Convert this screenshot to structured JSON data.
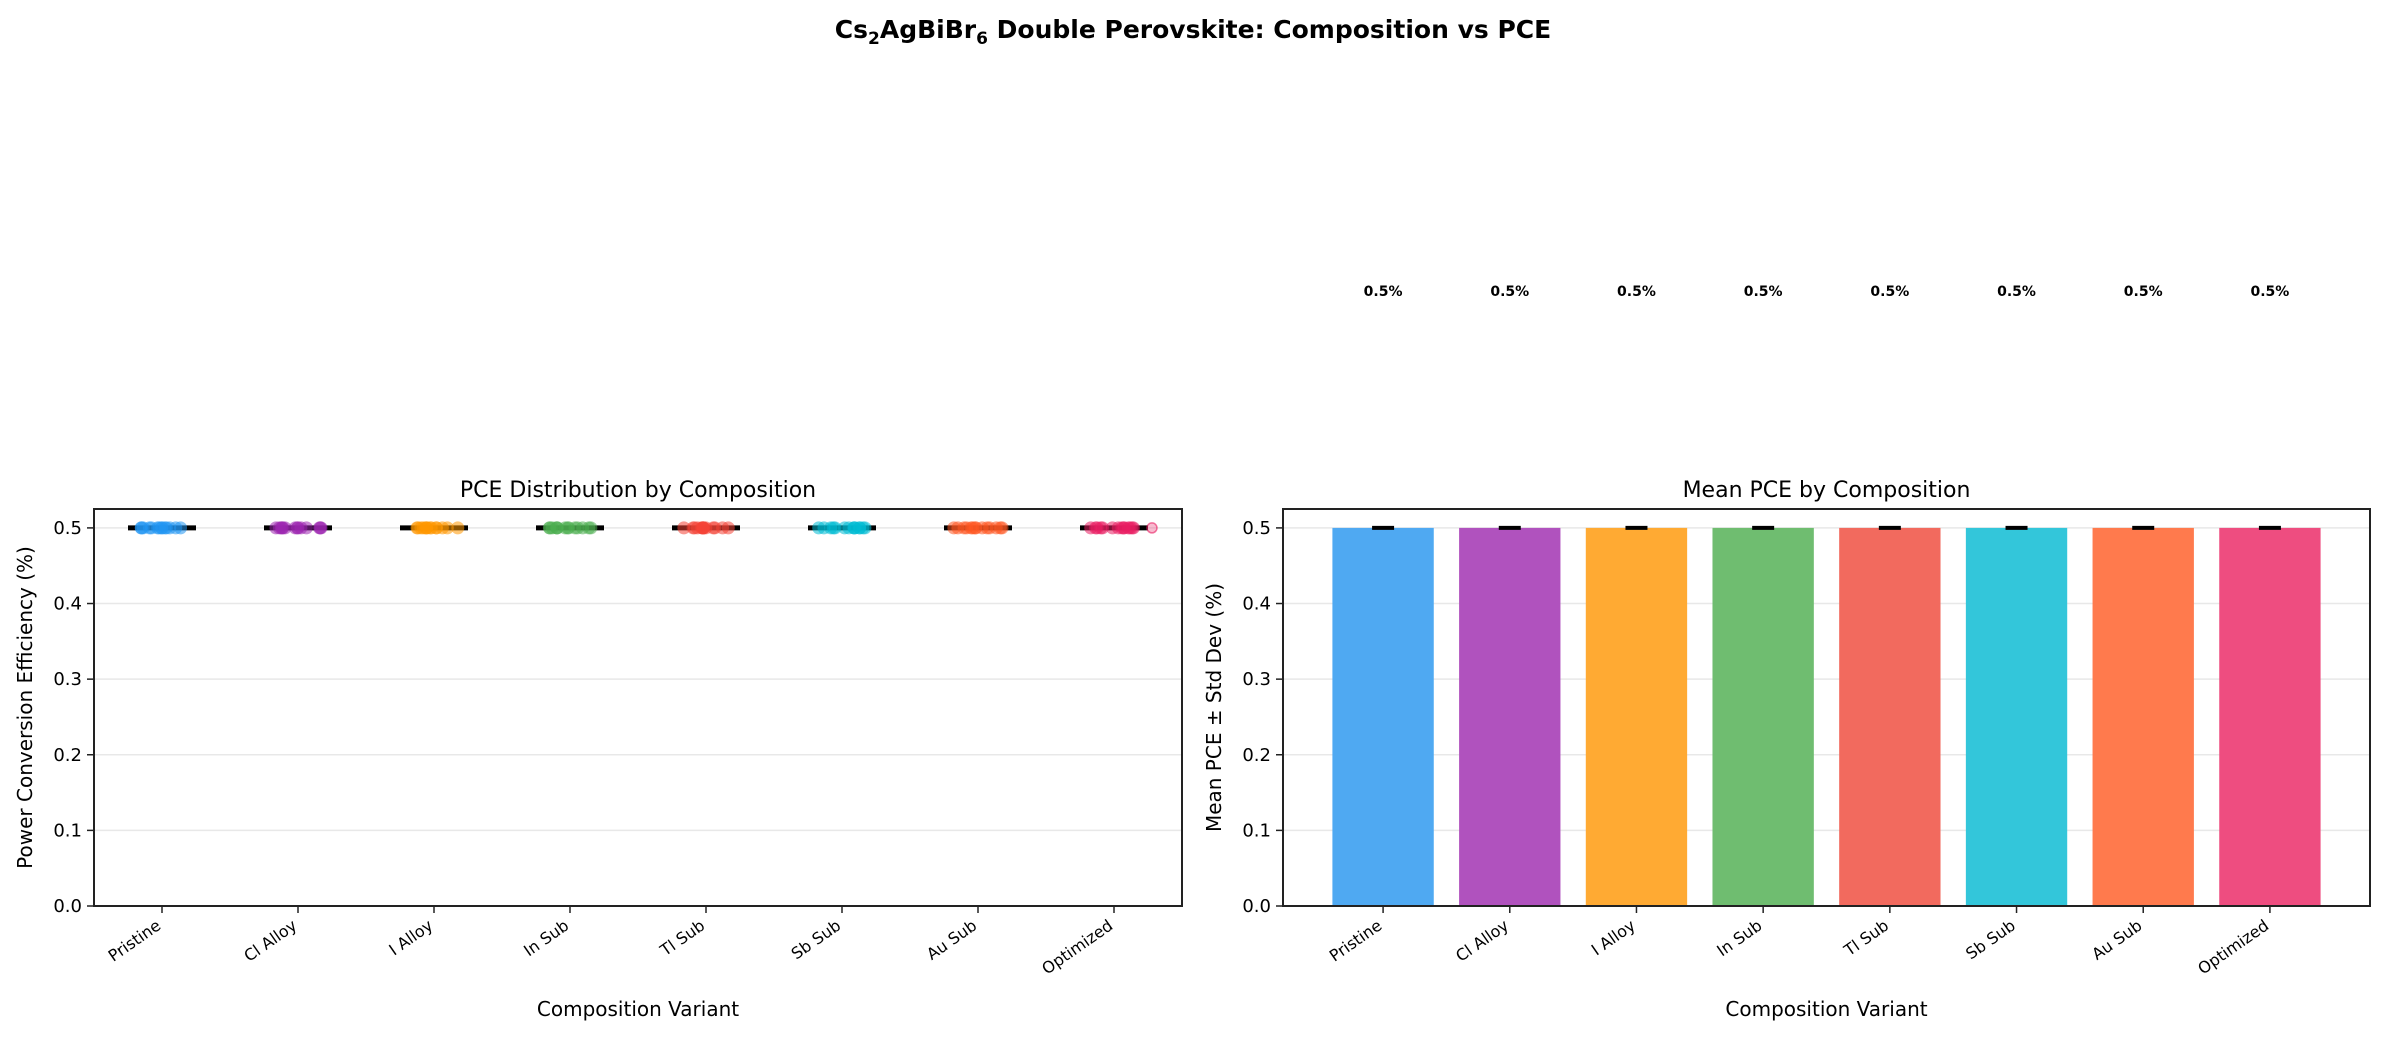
{
  "suptitle_parts": [
    "Cs",
    "2",
    "AgBiBr",
    "6",
    " Double Perovskite: Composition vs PCE"
  ],
  "chart_data": [
    {
      "type": "box",
      "title": "PCE Distribution by Composition",
      "xlabel": "Composition Variant",
      "ylabel": "Power Conversion Efficiency (%)",
      "categories": [
        "Pristine",
        "Cl Alloy",
        "I Alloy",
        "In Sub",
        "Tl Sub",
        "Sb Sub",
        "Au Sub",
        "Optimized"
      ],
      "median": [
        0.5,
        0.5,
        0.5,
        0.5,
        0.5,
        0.5,
        0.5,
        0.5
      ],
      "points_value": 0.5,
      "point_colors": [
        "#2196F3",
        "#9C27B0",
        "#FF9800",
        "#4CAF50",
        "#F44336",
        "#00BCD4",
        "#FF5722",
        "#E91E63"
      ],
      "ylim": [
        0,
        0.525
      ],
      "yticks": [
        "0.0",
        "0.1",
        "0.2",
        "0.3",
        "0.4",
        "0.5"
      ],
      "grid": "y"
    },
    {
      "type": "bar",
      "title": "Mean PCE by Composition",
      "xlabel": "Composition Variant",
      "ylabel": "Mean PCE ± Std Dev (%)",
      "categories": [
        "Pristine",
        "Cl Alloy",
        "I Alloy",
        "In Sub",
        "Tl Sub",
        "Sb Sub",
        "Au Sub",
        "Optimized"
      ],
      "values": [
        0.5,
        0.5,
        0.5,
        0.5,
        0.5,
        0.5,
        0.5,
        0.5
      ],
      "errors": [
        0,
        0,
        0,
        0,
        0,
        0,
        0,
        0
      ],
      "value_labels": [
        "0.5%",
        "0.5%",
        "0.5%",
        "0.5%",
        "0.5%",
        "0.5%",
        "0.5%",
        "0.5%"
      ],
      "bar_colors": [
        "#4FA9F2",
        "#B052BE",
        "#FFAA33",
        "#6FBD70",
        "#F26A5E",
        "#33C6DA",
        "#FF7A4D",
        "#EE4D80"
      ],
      "ylim": [
        0,
        0.525
      ],
      "yticks": [
        "0.0",
        "0.1",
        "0.2",
        "0.3",
        "0.4",
        "0.5"
      ],
      "grid": "y"
    }
  ]
}
